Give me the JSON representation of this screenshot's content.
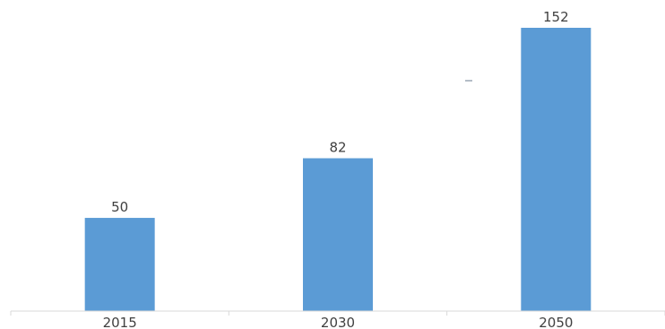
{
  "chart_data": {
    "type": "bar",
    "categories": [
      "2015",
      "2030",
      "2050"
    ],
    "values": [
      50,
      82,
      152
    ],
    "title": "",
    "xlabel": "",
    "ylabel": "",
    "ylim": [
      0,
      160
    ],
    "grid": false,
    "legend": "none",
    "data_labels": true,
    "colors": {
      "bar": "#5b9bd5",
      "axis": "#d9d9d9",
      "text": "#404040"
    }
  }
}
